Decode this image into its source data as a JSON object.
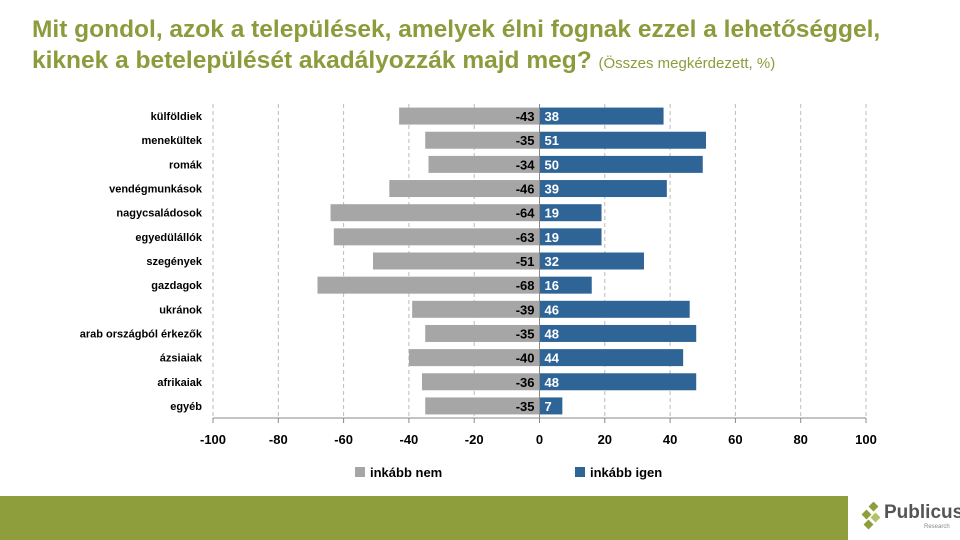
{
  "title": "Mit gondol, azok a települések, amelyek élni fognak ezzel a lehetőséggel, kiknek a betelepülését akadályozzák majd meg?",
  "subtitle": "(Összes megkérdezett, %)",
  "chart_data": {
    "type": "bar",
    "orientation": "horizontal",
    "stacked": "diverging",
    "categories": [
      "külföldiek",
      "menekültek",
      "romák",
      "vendégmunkások",
      "nagycsaládosok",
      "egyedülállók",
      "szegények",
      "gazdagok",
      "ukránok",
      "arab országból érkezők",
      "ázsiaiak",
      "afrikaiak",
      "egyéb"
    ],
    "series": [
      {
        "name": "inkább nem",
        "color": "#a6a6a6",
        "values": [
          -43,
          -35,
          -34,
          -46,
          -64,
          -63,
          -51,
          -68,
          -39,
          -35,
          -40,
          -36,
          -35
        ]
      },
      {
        "name": "inkább igen",
        "color": "#2f6497",
        "values": [
          38,
          51,
          50,
          39,
          19,
          19,
          32,
          16,
          46,
          48,
          44,
          48,
          7
        ]
      }
    ],
    "xlim": [
      -100,
      100
    ],
    "xticks": [
      -100,
      -80,
      -60,
      -40,
      -20,
      0,
      20,
      40,
      60,
      80,
      100
    ],
    "grid": "vertical dashed",
    "legend": "bottom"
  },
  "logo": {
    "brand": "Publicus",
    "tagline": "Research"
  },
  "colors": {
    "title": "#8c9c3c",
    "band": "#8f9e3c"
  }
}
